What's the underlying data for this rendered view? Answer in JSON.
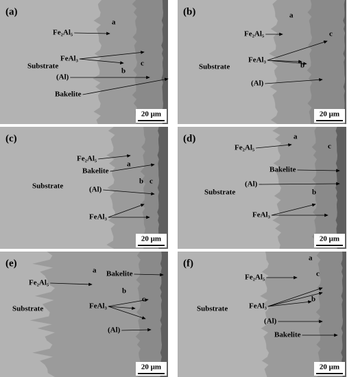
{
  "panels": [
    {
      "label": "(a)",
      "annotations": [
        "a",
        "Fe₂Al₅",
        "FeAl₃",
        "c",
        "b",
        "Substrate",
        "(Al)",
        "Bakelite"
      ],
      "scale_bar": "20 μm"
    },
    {
      "label": "(b)",
      "annotations": [
        "a",
        "Fe₂Al₅",
        "c",
        "FeAl₃",
        "b",
        "Substrate",
        "(Al)"
      ],
      "scale_bar": "20 μm"
    },
    {
      "label": "(c)",
      "annotations": [
        "Fe₂Al₅",
        "Bakelite",
        "a",
        "b",
        "c",
        "Substrate",
        "(Al)",
        "FeAl₃"
      ],
      "scale_bar": "20 μm"
    },
    {
      "label": "(d)",
      "annotations": [
        "a",
        "Fe₂Al₅",
        "c",
        "Bakelite",
        "(Al)",
        "b",
        "Substrate",
        "FeAl₃"
      ],
      "scale_bar": "20 μm"
    },
    {
      "label": "(e)",
      "annotations": [
        "a",
        "Bakelite",
        "Fe₂Al₅",
        "b",
        "c",
        "FeAl₃",
        "Substrate",
        "(Al)"
      ],
      "scale_bar": "20 μm"
    },
    {
      "label": "(f)",
      "annotations": [
        "a",
        "c",
        "Fe₂Al₅",
        "FeAl₃",
        "b",
        "Substrate",
        "(Al)",
        "Bakelite"
      ],
      "scale_bar": "20 μm"
    }
  ]
}
